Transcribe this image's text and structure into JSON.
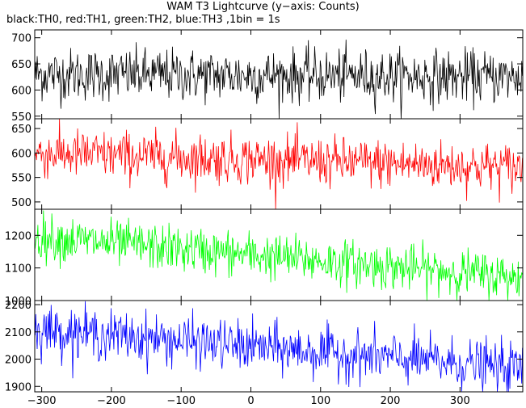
{
  "title": "WAM T3 Lightcurve (y−axis: Counts)",
  "subtitle": "black:TH0, red:TH1, green:TH2, blue:TH3 ,1bin = 1s",
  "chart_data": [
    {
      "type": "line",
      "name": "TH0",
      "color": "#000000",
      "x_range": [
        -310,
        390
      ],
      "ylim": [
        545,
        715
      ],
      "yticks": [
        550,
        600,
        650,
        700
      ],
      "mean_start": 630,
      "mean_end": 625,
      "noise": 25
    },
    {
      "type": "line",
      "name": "TH1",
      "color": "#ff0000",
      "x_range": [
        -310,
        390
      ],
      "ylim": [
        485,
        670
      ],
      "yticks": [
        500,
        550,
        600,
        650
      ],
      "mean_start": 600,
      "mean_end": 570,
      "noise": 25
    },
    {
      "type": "line",
      "name": "TH2",
      "color": "#00ff00",
      "x_range": [
        -310,
        390
      ],
      "ylim": [
        1000,
        1280
      ],
      "yticks": [
        1000,
        1100,
        1200
      ],
      "mean_start": 1195,
      "mean_end": 1070,
      "noise": 35
    },
    {
      "type": "line",
      "name": "TH3",
      "color": "#0000ff",
      "x_range": [
        -310,
        390
      ],
      "ylim": [
        1880,
        2215
      ],
      "yticks": [
        1900,
        2000,
        2100,
        2200
      ],
      "mean_start": 2110,
      "mean_end": 1965,
      "noise": 45
    }
  ],
  "x_axis": {
    "ticks": [
      -300,
      -200,
      -100,
      0,
      100,
      200,
      300
    ],
    "tick_labels": [
      "−300",
      "−200",
      "−100",
      "0",
      "100",
      "200",
      "300"
    ]
  }
}
